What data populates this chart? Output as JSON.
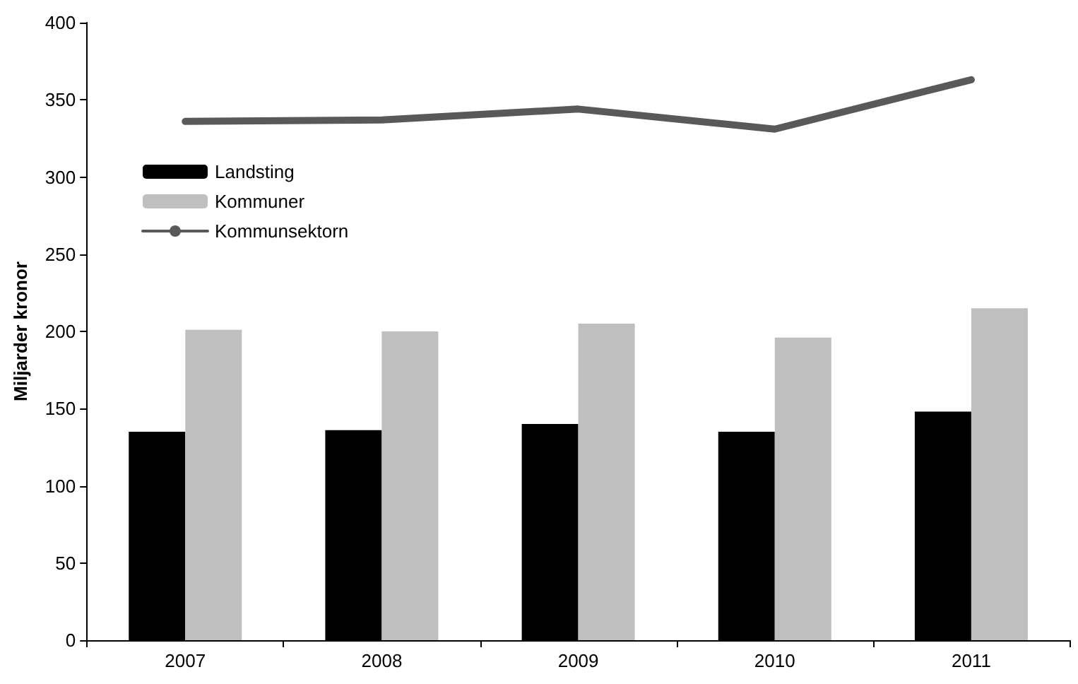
{
  "chart_data": {
    "type": "bar",
    "ylabel": "Miljarder kronor",
    "categories": [
      "2007",
      "2008",
      "2009",
      "2010",
      "2011"
    ],
    "series": [
      {
        "name": "Landsting",
        "color": "#000000",
        "values": [
          135,
          136,
          140,
          135,
          148
        ]
      },
      {
        "name": "Kommuner",
        "color": "#bfbfbf",
        "values": [
          201,
          200,
          205,
          196,
          215
        ]
      },
      {
        "name": "Kommunsektorn",
        "type": "line",
        "color": "#595959",
        "values": [
          336,
          337,
          344,
          331,
          363
        ]
      }
    ],
    "ylim": [
      0,
      400
    ],
    "yticks": [
      0,
      50,
      100,
      150,
      200,
      250,
      300,
      350,
      400
    ],
    "grid": false,
    "legend": "top left",
    "marker": "none"
  }
}
